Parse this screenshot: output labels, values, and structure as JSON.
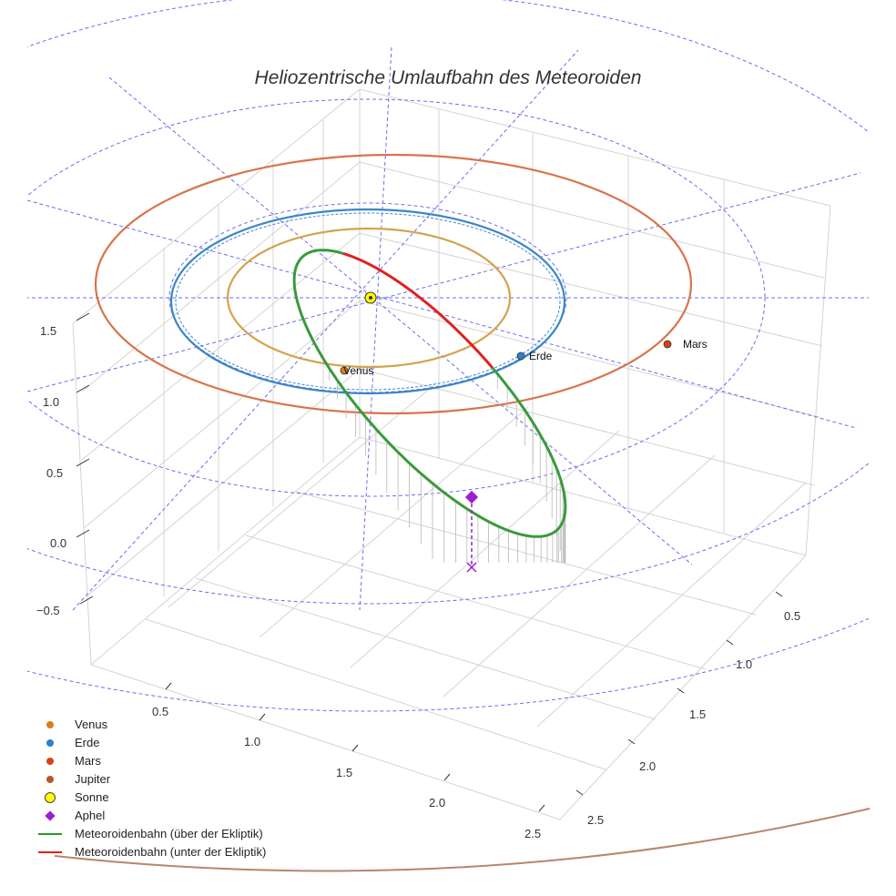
{
  "chart_data": {
    "type": "scatter",
    "title": "Heliozentrische Umlaufbahn des Meteoroiden",
    "z_ticks": [
      "−0.5",
      "0.0",
      "0.5",
      "1.0",
      "1.5"
    ],
    "x_ticks": [
      "0.5",
      "1.0",
      "1.5",
      "2.0",
      "2.5"
    ],
    "y_ticks": [
      "0.5",
      "1.0",
      "1.5",
      "2.0",
      "2.5"
    ],
    "orbits": [
      {
        "name": "Venus",
        "radius_au": 0.72,
        "color": "#d4a24c"
      },
      {
        "name": "Erde",
        "radius_au": 1.0,
        "color": "#3a86c8"
      },
      {
        "name": "Mars",
        "radius_au": 1.52,
        "color": "#d9734a"
      },
      {
        "name": "Jupiter",
        "radius_au": 5.2,
        "color": "#b5876a"
      }
    ],
    "planets": [
      {
        "name": "Venus",
        "label": "Venus",
        "color": "#d97f1a"
      },
      {
        "name": "Erde",
        "label": "Erde",
        "color": "#2f7fc4"
      },
      {
        "name": "Mars",
        "label": "Mars",
        "color": "#d4421a"
      }
    ],
    "sun": {
      "name": "Sonne",
      "color": "#ffff00"
    },
    "aphel": {
      "name": "Aphel",
      "color": "#9b1fd0"
    },
    "meteoroid_orbit": {
      "above_color": "#3a9a3a",
      "below_color": "#e02020",
      "above_label": "Meteoroidenbahn (über der Ekliptik)",
      "below_label": "Meteoroidenbahn (unter der Ekliptik)"
    },
    "grid_rings_au": [
      1.0,
      2.0,
      3.0,
      4.0
    ],
    "legend": [
      {
        "label": "Venus",
        "color": "#d97f1a",
        "marker": "dot"
      },
      {
        "label": "Erde",
        "color": "#2f7fc4",
        "marker": "dot"
      },
      {
        "label": "Mars",
        "color": "#d4421a",
        "marker": "dot"
      },
      {
        "label": "Jupiter",
        "color": "#b5562b",
        "marker": "dot"
      },
      {
        "label": "Sonne",
        "color": "#ffff00",
        "marker": "bigdot"
      },
      {
        "label": "Aphel",
        "color": "#9b1fd0",
        "marker": "diamond"
      },
      {
        "label": "Meteoroidenbahn (über der Ekliptik)",
        "color": "#2a9a2a",
        "marker": "line"
      },
      {
        "label": "Meteoroidenbahn (unter der Ekliptik)",
        "color": "#e02020",
        "marker": "line"
      }
    ]
  }
}
